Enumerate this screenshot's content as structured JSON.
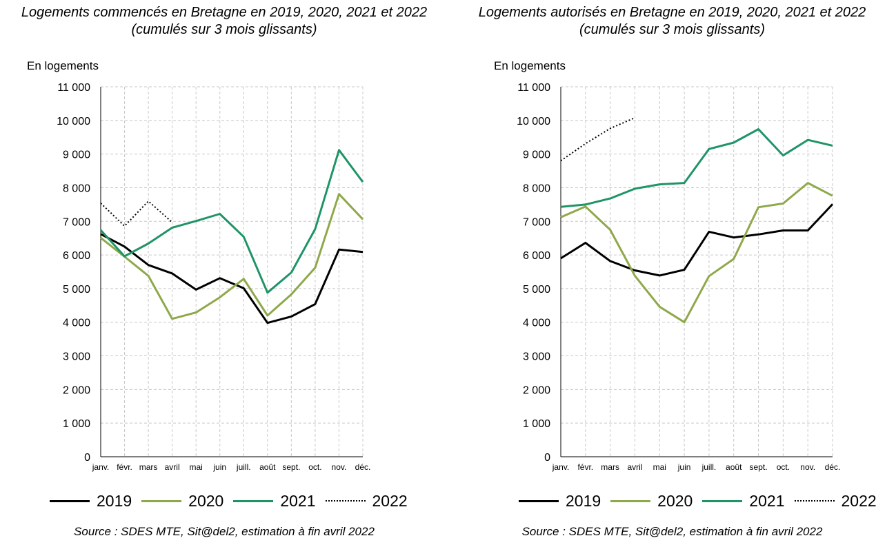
{
  "colors": {
    "2019": "#000000",
    "2020": "#8fa84a",
    "2021": "#1f9466",
    "2022": "#000000"
  },
  "chart_data": [
    {
      "type": "line",
      "title": "Logements commencés en Bretagne en 2019, 2020, 2021 et 2022",
      "subtitle": "(cumulés sur 3 mois glissants)",
      "ylabel": "En logements",
      "xlabel": "",
      "categories": [
        "janv.",
        "févr.",
        "mars",
        "avril",
        "mai",
        "juin",
        "juill.",
        "août",
        "sept.",
        "oct.",
        "nov.",
        "déc."
      ],
      "ylim": [
        0,
        11000
      ],
      "yticks": [
        0,
        1000,
        2000,
        3000,
        4000,
        5000,
        6000,
        7000,
        8000,
        9000,
        10000,
        11000
      ],
      "ytick_labels": [
        "0",
        "1 000",
        "2 000",
        "3 000",
        "4 000",
        "5 000",
        "6 000",
        "7 000",
        "8 000",
        "9 000",
        "10 000",
        "11 000"
      ],
      "grid": true,
      "legend": "bottom",
      "series": [
        {
          "name": "2019",
          "style": "solid",
          "color": "#000000",
          "values": [
            6620,
            6250,
            5700,
            5450,
            4970,
            5310,
            5010,
            3980,
            4170,
            4540,
            6160,
            6090
          ]
        },
        {
          "name": "2020",
          "style": "solid",
          "color": "#8fa84a",
          "values": [
            6510,
            5950,
            5380,
            4100,
            4290,
            4740,
            5290,
            4200,
            4830,
            5620,
            7810,
            7060
          ]
        },
        {
          "name": "2021",
          "style": "solid",
          "color": "#1f9466",
          "values": [
            6740,
            5960,
            6340,
            6810,
            7010,
            7220,
            6540,
            4880,
            5480,
            6770,
            9120,
            8170
          ]
        },
        {
          "name": "2022",
          "style": "dotted",
          "color": "#000000",
          "values": [
            7540,
            6860,
            7600,
            6970,
            null,
            null,
            null,
            null,
            null,
            null,
            null,
            null
          ]
        }
      ],
      "source": "Source : SDES MTE, Sit@del2, estimation à fin avril 2022"
    },
    {
      "type": "line",
      "title": "Logements autorisés en Bretagne en 2019, 2020, 2021 et 2022",
      "subtitle": "(cumulés sur 3 mois glissants)",
      "ylabel": "En logements",
      "xlabel": "",
      "categories": [
        "janv.",
        "févr.",
        "mars",
        "avril",
        "mai",
        "juin",
        "juill.",
        "août",
        "sept.",
        "oct.",
        "nov.",
        "déc."
      ],
      "ylim": [
        0,
        11000
      ],
      "yticks": [
        0,
        1000,
        2000,
        3000,
        4000,
        5000,
        6000,
        7000,
        8000,
        9000,
        10000,
        11000
      ],
      "ytick_labels": [
        "0",
        "1 000",
        "2 000",
        "3 000",
        "4 000",
        "5 000",
        "6 000",
        "7 000",
        "8 000",
        "9 000",
        "10 000",
        "11 000"
      ],
      "grid": true,
      "legend": "bottom",
      "series": [
        {
          "name": "2019",
          "style": "solid",
          "color": "#000000",
          "values": [
            5900,
            6360,
            5820,
            5540,
            5390,
            5560,
            6690,
            6520,
            6610,
            6730,
            6730,
            7510
          ]
        },
        {
          "name": "2020",
          "style": "solid",
          "color": "#8fa84a",
          "values": [
            7120,
            7440,
            6750,
            5380,
            4460,
            4000,
            5370,
            5880,
            7420,
            7530,
            8140,
            7760
          ]
        },
        {
          "name": "2021",
          "style": "solid",
          "color": "#1f9466",
          "values": [
            7430,
            7500,
            7680,
            7970,
            8100,
            8140,
            9150,
            9340,
            9740,
            8960,
            9420,
            9250
          ]
        },
        {
          "name": "2022",
          "style": "dotted",
          "color": "#000000",
          "values": [
            8800,
            9310,
            9760,
            10080,
            null,
            null,
            null,
            null,
            null,
            null,
            null,
            null
          ]
        }
      ],
      "source": "Source : SDES MTE, Sit@del2, estimation à fin avril 2022"
    }
  ]
}
